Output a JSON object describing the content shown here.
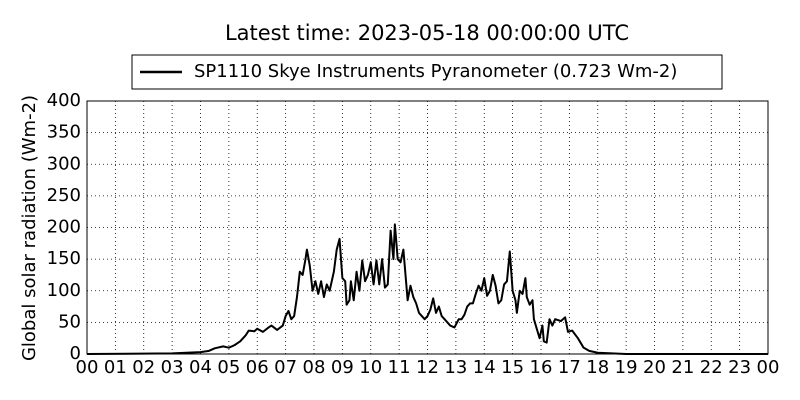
{
  "chart_data": {
    "type": "line",
    "title": "Latest time: 2023-05-18 00:00:00 UTC",
    "ylabel": "Global solar radiation (Wm-2)",
    "series": [
      {
        "name": "SP1110 Skye Instruments Pyranometer (0.723 Wm-2)",
        "color": "#000000",
        "x": [
          0,
          3.0,
          3.5,
          4.0,
          4.3,
          4.5,
          4.8,
          5.0,
          5.2,
          5.4,
          5.6,
          5.7,
          5.9,
          6.0,
          6.2,
          6.4,
          6.5,
          6.7,
          6.9,
          7.0,
          7.1,
          7.2,
          7.3,
          7.4,
          7.5,
          7.6,
          7.7,
          7.75,
          7.85,
          7.95,
          8.05,
          8.15,
          8.25,
          8.35,
          8.45,
          8.55,
          8.7,
          8.8,
          8.9,
          9.0,
          9.1,
          9.15,
          9.25,
          9.3,
          9.4,
          9.5,
          9.6,
          9.7,
          9.8,
          9.9,
          10.0,
          10.1,
          10.2,
          10.3,
          10.4,
          10.5,
          10.6,
          10.7,
          10.8,
          10.85,
          10.95,
          11.05,
          11.15,
          11.3,
          11.4,
          11.5,
          11.6,
          11.7,
          11.8,
          11.9,
          12.0,
          12.1,
          12.2,
          12.3,
          12.4,
          12.5,
          12.6,
          12.8,
          12.95,
          13.1,
          13.2,
          13.3,
          13.4,
          13.5,
          13.6,
          13.7,
          13.8,
          13.9,
          14.0,
          14.1,
          14.2,
          14.3,
          14.4,
          14.5,
          14.6,
          14.7,
          14.8,
          14.9,
          15.0,
          15.1,
          15.15,
          15.25,
          15.35,
          15.45,
          15.5,
          15.6,
          15.7,
          15.75,
          15.85,
          15.95,
          16.05,
          16.1,
          16.2,
          16.3,
          16.4,
          16.5,
          16.7,
          16.85,
          16.95,
          17.1,
          17.3,
          17.5,
          17.7,
          18.0,
          18.5,
          19.0,
          24
        ],
        "values": [
          0,
          1,
          2,
          3,
          5,
          9,
          12,
          10,
          14,
          20,
          30,
          37,
          36,
          40,
          35,
          42,
          45,
          38,
          45,
          60,
          68,
          55,
          60,
          90,
          130,
          125,
          150,
          165,
          140,
          100,
          115,
          95,
          115,
          90,
          110,
          100,
          130,
          165,
          182,
          120,
          115,
          78,
          85,
          115,
          85,
          130,
          100,
          148,
          115,
          125,
          145,
          110,
          148,
          110,
          150,
          105,
          110,
          195,
          150,
          205,
          150,
          145,
          165,
          85,
          108,
          90,
          80,
          65,
          60,
          55,
          60,
          70,
          88,
          65,
          75,
          60,
          55,
          45,
          42,
          55,
          55,
          62,
          75,
          80,
          80,
          95,
          108,
          100,
          120,
          92,
          100,
          125,
          108,
          80,
          85,
          110,
          115,
          162,
          100,
          85,
          65,
          100,
          95,
          120,
          90,
          78,
          85,
          55,
          40,
          25,
          45,
          20,
          18,
          55,
          45,
          55,
          52,
          58,
          35,
          37,
          25,
          10,
          5,
          2,
          1,
          0,
          0
        ]
      }
    ],
    "xlim": [
      0,
      24
    ],
    "xticks": [
      {
        "value": 0,
        "label": "00"
      },
      {
        "value": 1,
        "label": "01"
      },
      {
        "value": 2,
        "label": "02"
      },
      {
        "value": 3,
        "label": "03"
      },
      {
        "value": 4,
        "label": "04"
      },
      {
        "value": 5,
        "label": "05"
      },
      {
        "value": 6,
        "label": "06"
      },
      {
        "value": 7,
        "label": "07"
      },
      {
        "value": 8,
        "label": "08"
      },
      {
        "value": 9,
        "label": "09"
      },
      {
        "value": 10,
        "label": "10"
      },
      {
        "value": 11,
        "label": "11"
      },
      {
        "value": 12,
        "label": "12"
      },
      {
        "value": 13,
        "label": "13"
      },
      {
        "value": 14,
        "label": "14"
      },
      {
        "value": 15,
        "label": "15"
      },
      {
        "value": 16,
        "label": "16"
      },
      {
        "value": 17,
        "label": "17"
      },
      {
        "value": 18,
        "label": "18"
      },
      {
        "value": 19,
        "label": "19"
      },
      {
        "value": 20,
        "label": "20"
      },
      {
        "value": 21,
        "label": "21"
      },
      {
        "value": 22,
        "label": "22"
      },
      {
        "value": 23,
        "label": "23"
      },
      {
        "value": 24,
        "label": "00"
      }
    ],
    "ylim": [
      0,
      400
    ],
    "yticks": [
      0,
      50,
      100,
      150,
      200,
      250,
      300,
      350,
      400
    ],
    "grid": true,
    "legend": "top"
  }
}
